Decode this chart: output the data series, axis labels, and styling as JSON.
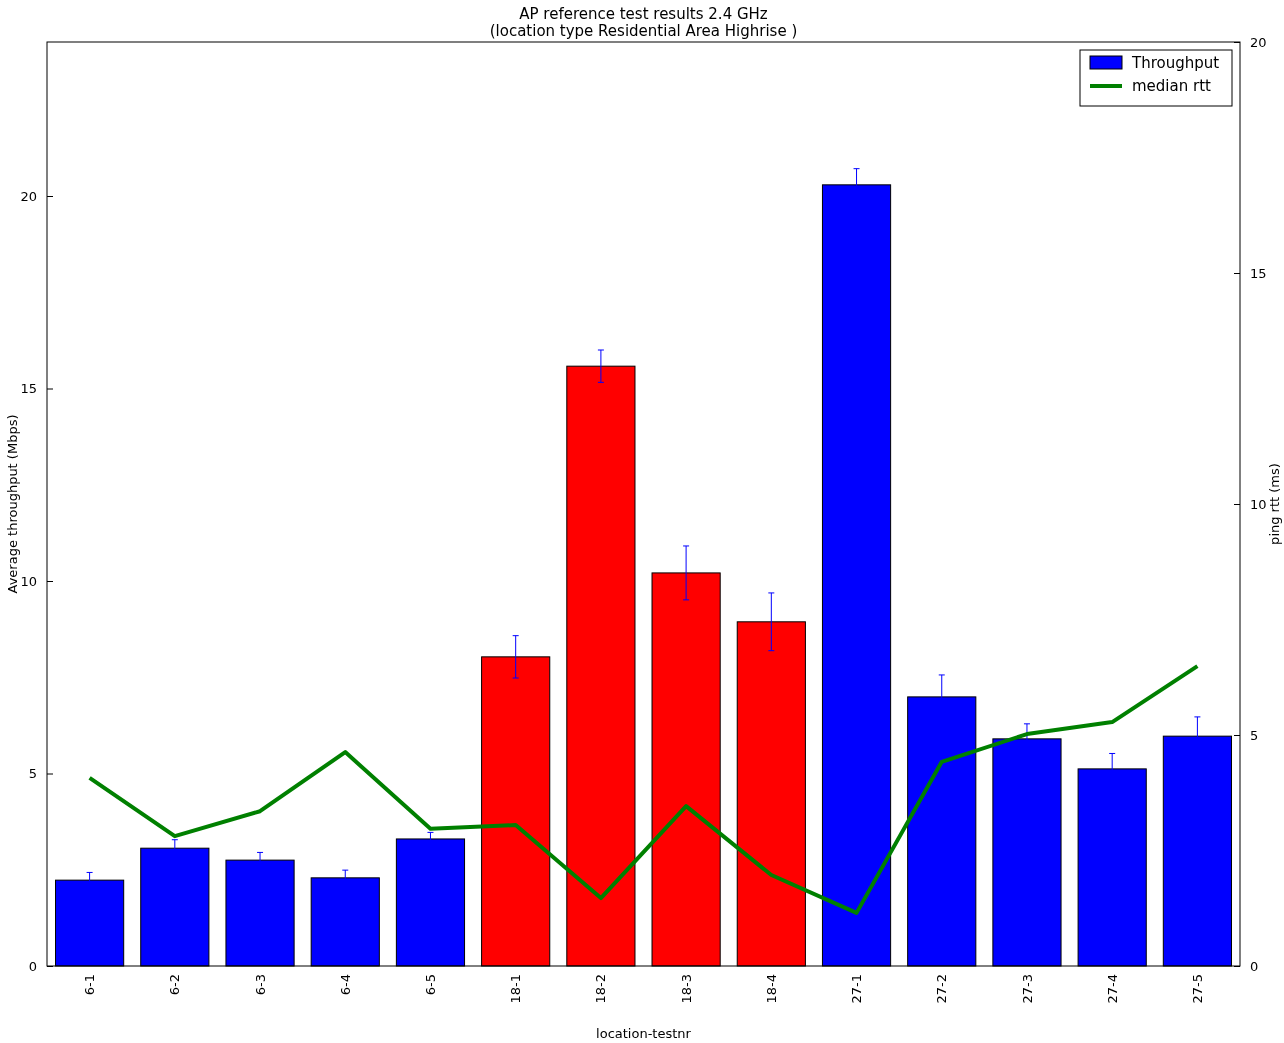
{
  "chart_data": {
    "type": "bar",
    "title": "AP reference test results 2.4 GHz",
    "subtitle": "(location type Residential Area Highrise )",
    "xlabel": "location-testnr",
    "ylabel": "Average throughput (Mbps)",
    "y2label": "ping rtt (ms)",
    "categories": [
      "6-1",
      "6-2",
      "6-3",
      "6-4",
      "6-5",
      "18-1",
      "18-2",
      "18-3",
      "18-4",
      "27-1",
      "27-2",
      "27-3",
      "27-4",
      "27-5"
    ],
    "series": [
      {
        "name": "Throughput",
        "color": "#0000ff",
        "colors": [
          "#0000ff",
          "#0000ff",
          "#0000ff",
          "#0000ff",
          "#0000ff",
          "#ff0000",
          "#ff0000",
          "#ff0000",
          "#ff0000",
          "#0000ff",
          "#0000ff",
          "#0000ff",
          "#0000ff",
          "#0000ff"
        ],
        "values": [
          2.23,
          3.06,
          2.75,
          2.29,
          3.3,
          8.03,
          15.58,
          10.21,
          8.94,
          20.29,
          6.99,
          5.9,
          5.12,
          5.97
        ],
        "errors": [
          0.2,
          0.22,
          0.2,
          0.2,
          0.17,
          0.55,
          0.42,
          0.7,
          0.75,
          0.42,
          0.57,
          0.39,
          0.4,
          0.5
        ]
      },
      {
        "name": "median rtt",
        "type": "line",
        "axis": "y2",
        "color": "#008000",
        "values": [
          4.07,
          2.81,
          3.35,
          4.63,
          2.97,
          3.05,
          1.47,
          3.46,
          1.97,
          1.15,
          4.42,
          5.02,
          5.28,
          6.49
        ]
      }
    ],
    "ylim": [
      0,
      24
    ],
    "yticks": [
      0,
      5,
      10,
      15,
      20
    ],
    "y2lim": [
      0,
      20
    ],
    "y2ticks": [
      0,
      5,
      10,
      15,
      20
    ],
    "grid": false,
    "legend": "top right",
    "marker": "none",
    "line_style": "solid"
  }
}
